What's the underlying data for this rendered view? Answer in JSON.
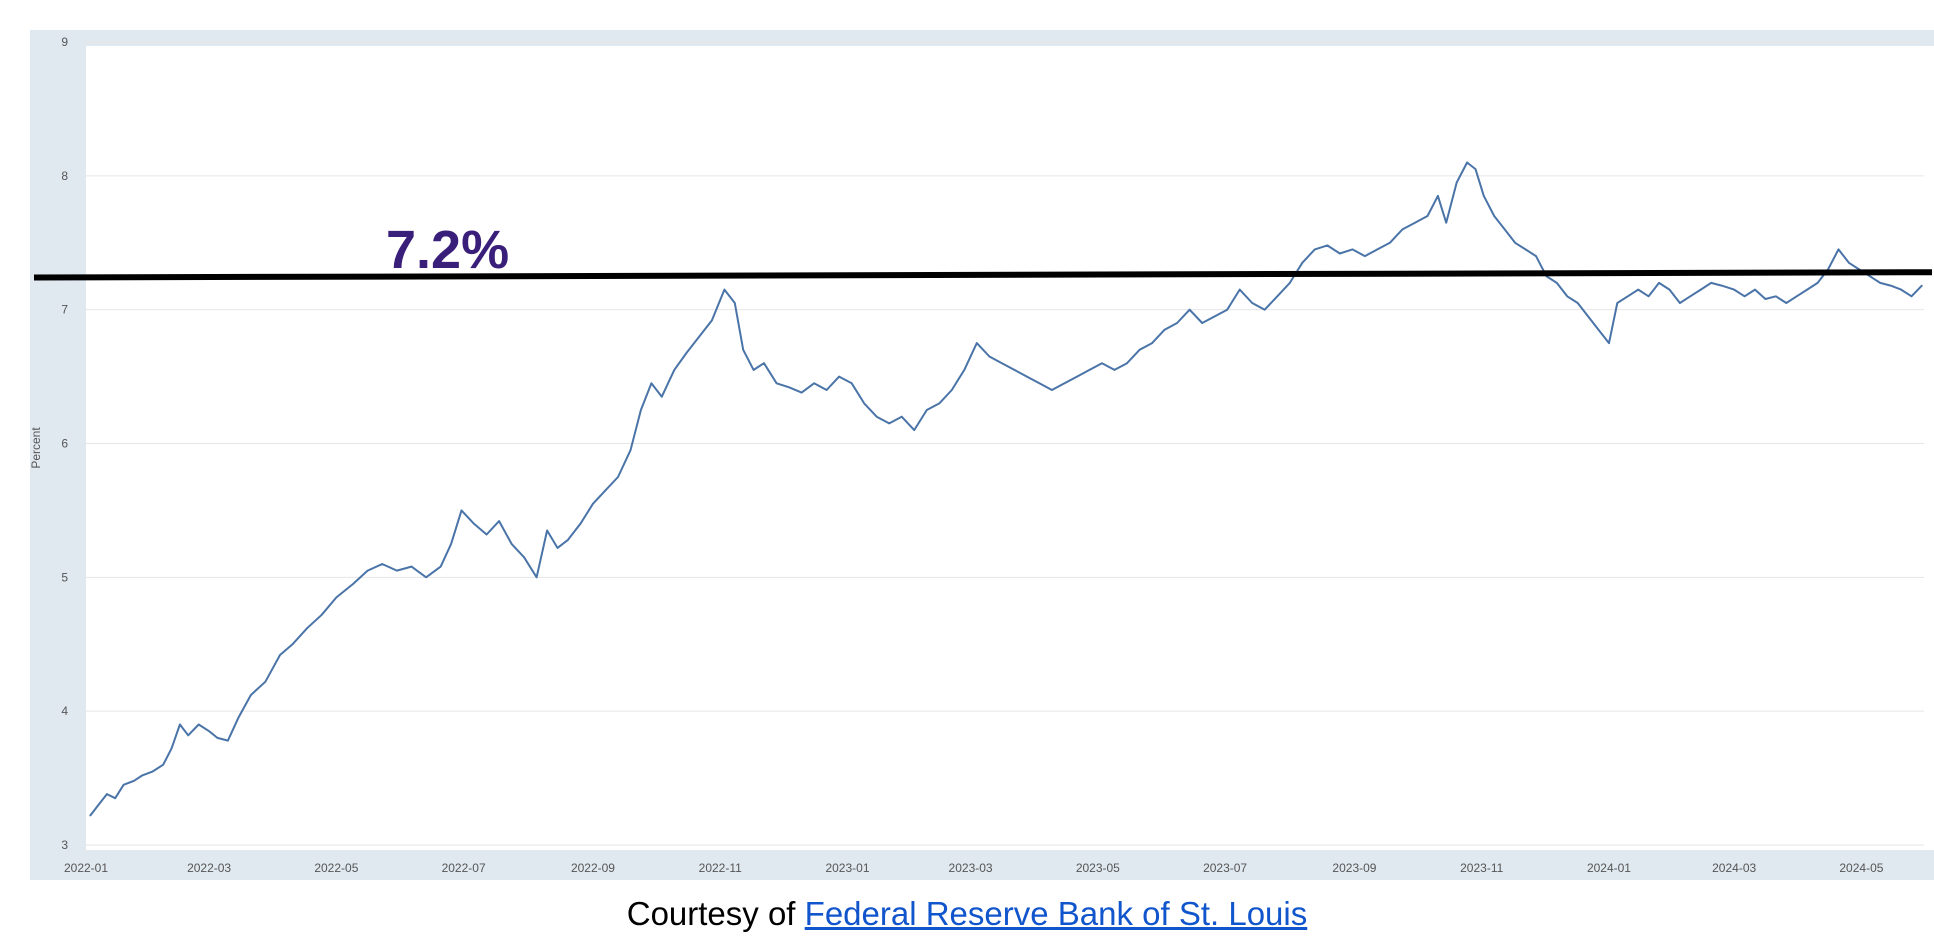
{
  "chart_data": {
    "type": "line",
    "ylabel": "Percent",
    "ylim": [
      3,
      9
    ],
    "y_ticks": [
      "3",
      "4",
      "5",
      "6",
      "7",
      "8",
      "9"
    ],
    "x_tick_labels": [
      "2022-01",
      "2022-03",
      "2022-05",
      "2022-07",
      "2022-09",
      "2022-11",
      "2023-01",
      "2023-03",
      "2023-05",
      "2023-07",
      "2023-09",
      "2023-11",
      "2024-01",
      "2024-03",
      "2024-05"
    ],
    "xlim": [
      "2022-01-01",
      "2024-05-31"
    ],
    "grid": true,
    "colors": {
      "background": "#e1e9f0",
      "plot": "#ffffff",
      "line": "#4a74a8",
      "reference": "#000000",
      "gridline": "#e6e6e6"
    },
    "series": [
      {
        "values": [
          [
            "2022-01-03",
            3.22
          ],
          [
            "2022-01-07",
            3.3
          ],
          [
            "2022-01-11",
            3.38
          ],
          [
            "2022-01-15",
            3.35
          ],
          [
            "2022-01-19",
            3.45
          ],
          [
            "2022-01-24",
            3.48
          ],
          [
            "2022-01-28",
            3.52
          ],
          [
            "2022-02-02",
            3.55
          ],
          [
            "2022-02-07",
            3.6
          ],
          [
            "2022-02-11",
            3.72
          ],
          [
            "2022-02-15",
            3.9
          ],
          [
            "2022-02-19",
            3.82
          ],
          [
            "2022-02-24",
            3.9
          ],
          [
            "2022-03-01",
            3.85
          ],
          [
            "2022-03-05",
            3.8
          ],
          [
            "2022-03-10",
            3.78
          ],
          [
            "2022-03-15",
            3.95
          ],
          [
            "2022-03-21",
            4.12
          ],
          [
            "2022-03-28",
            4.22
          ],
          [
            "2022-04-04",
            4.42
          ],
          [
            "2022-04-10",
            4.5
          ],
          [
            "2022-04-17",
            4.62
          ],
          [
            "2022-04-24",
            4.72
          ],
          [
            "2022-05-01",
            4.85
          ],
          [
            "2022-05-09",
            4.95
          ],
          [
            "2022-05-16",
            5.05
          ],
          [
            "2022-05-23",
            5.1
          ],
          [
            "2022-05-30",
            5.05
          ],
          [
            "2022-06-06",
            5.08
          ],
          [
            "2022-06-13",
            5.0
          ],
          [
            "2022-06-20",
            5.08
          ],
          [
            "2022-06-25",
            5.25
          ],
          [
            "2022-06-30",
            5.5
          ],
          [
            "2022-07-06",
            5.4
          ],
          [
            "2022-07-12",
            5.32
          ],
          [
            "2022-07-18",
            5.42
          ],
          [
            "2022-07-24",
            5.25
          ],
          [
            "2022-07-30",
            5.15
          ],
          [
            "2022-08-05",
            5.0
          ],
          [
            "2022-08-10",
            5.35
          ],
          [
            "2022-08-15",
            5.22
          ],
          [
            "2022-08-20",
            5.28
          ],
          [
            "2022-08-26",
            5.4
          ],
          [
            "2022-09-01",
            5.55
          ],
          [
            "2022-09-07",
            5.65
          ],
          [
            "2022-09-13",
            5.75
          ],
          [
            "2022-09-19",
            5.95
          ],
          [
            "2022-09-24",
            6.25
          ],
          [
            "2022-09-29",
            6.45
          ],
          [
            "2022-10-04",
            6.35
          ],
          [
            "2022-10-10",
            6.55
          ],
          [
            "2022-10-16",
            6.68
          ],
          [
            "2022-10-22",
            6.8
          ],
          [
            "2022-10-28",
            6.92
          ],
          [
            "2022-11-03",
            7.15
          ],
          [
            "2022-11-08",
            7.05
          ],
          [
            "2022-11-12",
            6.7
          ],
          [
            "2022-11-17",
            6.55
          ],
          [
            "2022-11-22",
            6.6
          ],
          [
            "2022-11-28",
            6.45
          ],
          [
            "2022-12-04",
            6.42
          ],
          [
            "2022-12-10",
            6.38
          ],
          [
            "2022-12-16",
            6.45
          ],
          [
            "2022-12-22",
            6.4
          ],
          [
            "2022-12-28",
            6.5
          ],
          [
            "2023-01-03",
            6.45
          ],
          [
            "2023-01-09",
            6.3
          ],
          [
            "2023-01-15",
            6.2
          ],
          [
            "2023-01-21",
            6.15
          ],
          [
            "2023-01-27",
            6.2
          ],
          [
            "2023-02-02",
            6.1
          ],
          [
            "2023-02-08",
            6.25
          ],
          [
            "2023-02-14",
            6.3
          ],
          [
            "2023-02-20",
            6.4
          ],
          [
            "2023-02-26",
            6.55
          ],
          [
            "2023-03-04",
            6.75
          ],
          [
            "2023-03-10",
            6.65
          ],
          [
            "2023-03-16",
            6.6
          ],
          [
            "2023-03-22",
            6.55
          ],
          [
            "2023-03-28",
            6.5
          ],
          [
            "2023-04-03",
            6.45
          ],
          [
            "2023-04-09",
            6.4
          ],
          [
            "2023-04-15",
            6.45
          ],
          [
            "2023-04-21",
            6.5
          ],
          [
            "2023-04-27",
            6.55
          ],
          [
            "2023-05-03",
            6.6
          ],
          [
            "2023-05-09",
            6.55
          ],
          [
            "2023-05-15",
            6.6
          ],
          [
            "2023-05-21",
            6.7
          ],
          [
            "2023-05-27",
            6.75
          ],
          [
            "2023-06-02",
            6.85
          ],
          [
            "2023-06-08",
            6.9
          ],
          [
            "2023-06-14",
            7.0
          ],
          [
            "2023-06-20",
            6.9
          ],
          [
            "2023-06-26",
            6.95
          ],
          [
            "2023-07-02",
            7.0
          ],
          [
            "2023-07-08",
            7.15
          ],
          [
            "2023-07-14",
            7.05
          ],
          [
            "2023-07-20",
            7.0
          ],
          [
            "2023-07-26",
            7.1
          ],
          [
            "2023-08-01",
            7.2
          ],
          [
            "2023-08-07",
            7.35
          ],
          [
            "2023-08-13",
            7.45
          ],
          [
            "2023-08-19",
            7.48
          ],
          [
            "2023-08-25",
            7.42
          ],
          [
            "2023-08-31",
            7.45
          ],
          [
            "2023-09-06",
            7.4
          ],
          [
            "2023-09-12",
            7.45
          ],
          [
            "2023-09-18",
            7.5
          ],
          [
            "2023-09-24",
            7.6
          ],
          [
            "2023-09-30",
            7.65
          ],
          [
            "2023-10-06",
            7.7
          ],
          [
            "2023-10-11",
            7.85
          ],
          [
            "2023-10-15",
            7.65
          ],
          [
            "2023-10-20",
            7.95
          ],
          [
            "2023-10-25",
            8.1
          ],
          [
            "2023-10-29",
            8.05
          ],
          [
            "2023-11-02",
            7.85
          ],
          [
            "2023-11-07",
            7.7
          ],
          [
            "2023-11-12",
            7.6
          ],
          [
            "2023-11-17",
            7.5
          ],
          [
            "2023-11-22",
            7.45
          ],
          [
            "2023-11-27",
            7.4
          ],
          [
            "2023-12-02",
            7.25
          ],
          [
            "2023-12-07",
            7.2
          ],
          [
            "2023-12-12",
            7.1
          ],
          [
            "2023-12-17",
            7.05
          ],
          [
            "2023-12-22",
            6.95
          ],
          [
            "2023-12-27",
            6.85
          ],
          [
            "2024-01-01",
            6.75
          ],
          [
            "2024-01-05",
            7.05
          ],
          [
            "2024-01-10",
            7.1
          ],
          [
            "2024-01-15",
            7.15
          ],
          [
            "2024-01-20",
            7.1
          ],
          [
            "2024-01-25",
            7.2
          ],
          [
            "2024-01-30",
            7.15
          ],
          [
            "2024-02-04",
            7.05
          ],
          [
            "2024-02-09",
            7.1
          ],
          [
            "2024-02-14",
            7.15
          ],
          [
            "2024-02-19",
            7.2
          ],
          [
            "2024-02-24",
            7.18
          ],
          [
            "2024-03-01",
            7.15
          ],
          [
            "2024-03-06",
            7.1
          ],
          [
            "2024-03-11",
            7.15
          ],
          [
            "2024-03-16",
            7.08
          ],
          [
            "2024-03-21",
            7.1
          ],
          [
            "2024-03-26",
            7.05
          ],
          [
            "2024-03-31",
            7.1
          ],
          [
            "2024-04-05",
            7.15
          ],
          [
            "2024-04-10",
            7.2
          ],
          [
            "2024-04-15",
            7.3
          ],
          [
            "2024-04-20",
            7.45
          ],
          [
            "2024-04-25",
            7.35
          ],
          [
            "2024-04-30",
            7.3
          ],
          [
            "2024-05-05",
            7.25
          ],
          [
            "2024-05-10",
            7.2
          ],
          [
            "2024-05-15",
            7.18
          ],
          [
            "2024-05-20",
            7.15
          ],
          [
            "2024-05-25",
            7.1
          ],
          [
            "2024-05-30",
            7.18
          ]
        ]
      }
    ],
    "reference_line": {
      "label": "7.2%",
      "y_start": 7.24,
      "y_end": 7.28
    }
  },
  "credit": {
    "prefix": "Courtesy of ",
    "link_text": "Federal Reserve Bank of St. Louis"
  }
}
